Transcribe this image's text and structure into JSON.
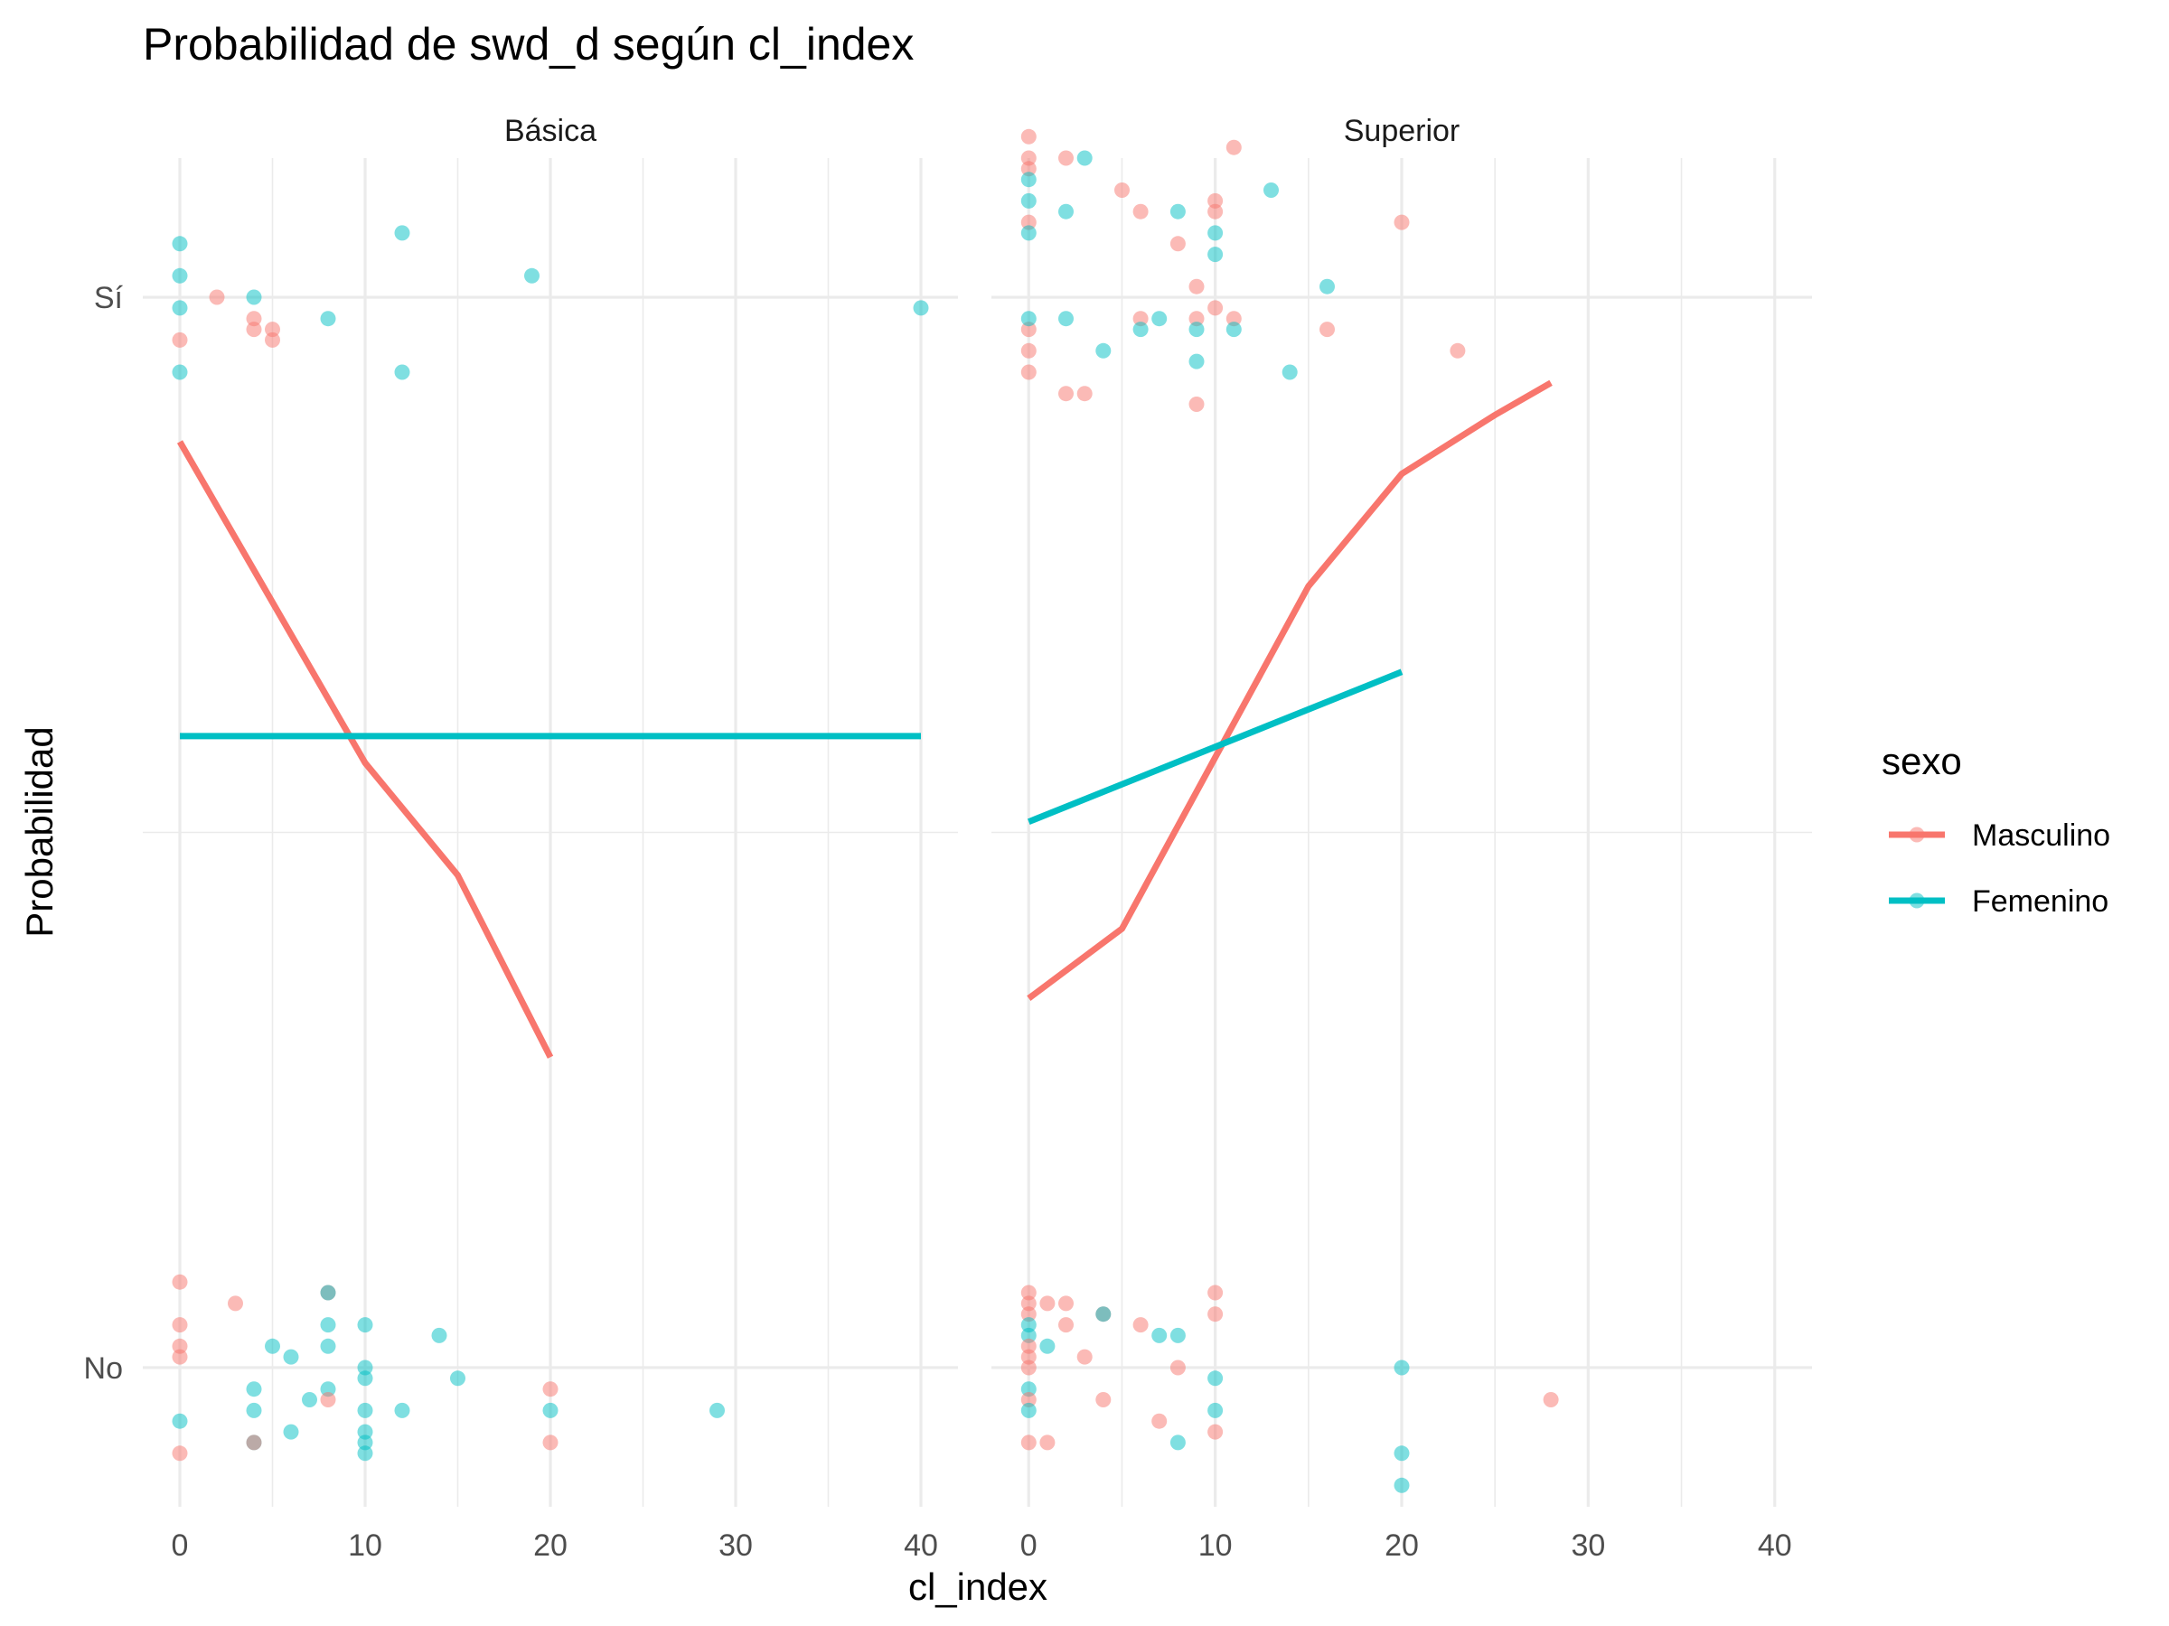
{
  "chart_data": {
    "type": "scatter",
    "title": "Probabilidad de swd_d según cl_index",
    "xlabel": "cl_index",
    "ylabel": "Probabilidad",
    "xlim": [
      -2,
      42
    ],
    "ylim": [
      -0.13,
      1.13
    ],
    "x_ticks": [
      "0",
      "10",
      "20",
      "30",
      "40"
    ],
    "y_tick_labels": [
      {
        "label": "No",
        "value": 0
      },
      {
        "label": "Sí",
        "value": 1
      }
    ],
    "grid": true,
    "legend": {
      "title": "sexo",
      "position": "right"
    },
    "colors": {
      "Masculino": "#F8766D",
      "Femenino": "#00BFC4"
    },
    "facets": [
      {
        "name": "Básica",
        "points": [
          {
            "x": 0,
            "y": 1.05,
            "sexo": "Femenino"
          },
          {
            "x": 0,
            "y": 1.02,
            "sexo": "Femenino"
          },
          {
            "x": 0,
            "y": 0.99,
            "sexo": "Femenino"
          },
          {
            "x": 0,
            "y": 0.93,
            "sexo": "Femenino"
          },
          {
            "x": 0,
            "y": 0.96,
            "sexo": "Masculino"
          },
          {
            "x": 2,
            "y": 1.0,
            "sexo": "Masculino"
          },
          {
            "x": 4,
            "y": 1.0,
            "sexo": "Femenino"
          },
          {
            "x": 4,
            "y": 0.98,
            "sexo": "Masculino"
          },
          {
            "x": 4,
            "y": 0.97,
            "sexo": "Masculino"
          },
          {
            "x": 5,
            "y": 0.97,
            "sexo": "Masculino"
          },
          {
            "x": 5,
            "y": 0.96,
            "sexo": "Masculino"
          },
          {
            "x": 8,
            "y": 0.98,
            "sexo": "Femenino"
          },
          {
            "x": 12,
            "y": 1.06,
            "sexo": "Femenino"
          },
          {
            "x": 12,
            "y": 0.93,
            "sexo": "Femenino"
          },
          {
            "x": 19,
            "y": 1.02,
            "sexo": "Femenino"
          },
          {
            "x": 40,
            "y": 0.99,
            "sexo": "Femenino"
          },
          {
            "x": 0,
            "y": 0.08,
            "sexo": "Masculino"
          },
          {
            "x": 0,
            "y": 0.04,
            "sexo": "Masculino"
          },
          {
            "x": 0,
            "y": 0.02,
            "sexo": "Masculino"
          },
          {
            "x": 0,
            "y": 0.01,
            "sexo": "Masculino"
          },
          {
            "x": 0,
            "y": -0.05,
            "sexo": "Femenino"
          },
          {
            "x": 0,
            "y": -0.08,
            "sexo": "Masculino"
          },
          {
            "x": 3,
            "y": 0.06,
            "sexo": "Masculino"
          },
          {
            "x": 4,
            "y": -0.04,
            "sexo": "Femenino"
          },
          {
            "x": 4,
            "y": -0.02,
            "sexo": "Femenino"
          },
          {
            "x": 4,
            "y": -0.07,
            "sexo": "Femenino"
          },
          {
            "x": 4,
            "y": -0.07,
            "sexo": "Masculino"
          },
          {
            "x": 5,
            "y": 0.02,
            "sexo": "Femenino"
          },
          {
            "x": 6,
            "y": 0.01,
            "sexo": "Femenino"
          },
          {
            "x": 6,
            "y": -0.06,
            "sexo": "Femenino"
          },
          {
            "x": 7,
            "y": -0.03,
            "sexo": "Femenino"
          },
          {
            "x": 8,
            "y": 0.07,
            "sexo": "Masculino"
          },
          {
            "x": 8,
            "y": 0.07,
            "sexo": "Femenino"
          },
          {
            "x": 8,
            "y": 0.04,
            "sexo": "Femenino"
          },
          {
            "x": 8,
            "y": 0.02,
            "sexo": "Femenino"
          },
          {
            "x": 8,
            "y": -0.02,
            "sexo": "Femenino"
          },
          {
            "x": 8,
            "y": -0.03,
            "sexo": "Masculino"
          },
          {
            "x": 10,
            "y": 0.04,
            "sexo": "Femenino"
          },
          {
            "x": 10,
            "y": 0.0,
            "sexo": "Femenino"
          },
          {
            "x": 10,
            "y": -0.01,
            "sexo": "Femenino"
          },
          {
            "x": 10,
            "y": -0.04,
            "sexo": "Femenino"
          },
          {
            "x": 10,
            "y": -0.06,
            "sexo": "Femenino"
          },
          {
            "x": 10,
            "y": -0.07,
            "sexo": "Femenino"
          },
          {
            "x": 10,
            "y": -0.08,
            "sexo": "Femenino"
          },
          {
            "x": 12,
            "y": -0.04,
            "sexo": "Femenino"
          },
          {
            "x": 14,
            "y": 0.03,
            "sexo": "Femenino"
          },
          {
            "x": 15,
            "y": -0.01,
            "sexo": "Femenino"
          },
          {
            "x": 20,
            "y": -0.02,
            "sexo": "Masculino"
          },
          {
            "x": 20,
            "y": -0.04,
            "sexo": "Femenino"
          },
          {
            "x": 20,
            "y": -0.07,
            "sexo": "Masculino"
          },
          {
            "x": 29,
            "y": -0.04,
            "sexo": "Femenino"
          }
        ],
        "lines": [
          {
            "sexo": "Masculino",
            "x": [
              0,
              5,
              10,
              15,
              20
            ],
            "y": [
              0.865,
              0.715,
              0.565,
              0.46,
              0.29
            ]
          },
          {
            "sexo": "Femenino",
            "x": [
              0,
              40
            ],
            "y": [
              0.59,
              0.59
            ]
          }
        ]
      },
      {
        "name": "Superior",
        "points": [
          {
            "x": 0,
            "y": 1.15,
            "sexo": "Masculino"
          },
          {
            "x": 0,
            "y": 1.13,
            "sexo": "Masculino"
          },
          {
            "x": 0,
            "y": 1.12,
            "sexo": "Masculino"
          },
          {
            "x": 0,
            "y": 1.11,
            "sexo": "Femenino"
          },
          {
            "x": 0,
            "y": 1.09,
            "sexo": "Femenino"
          },
          {
            "x": 0,
            "y": 1.07,
            "sexo": "Masculino"
          },
          {
            "x": 0,
            "y": 1.06,
            "sexo": "Femenino"
          },
          {
            "x": 0,
            "y": 0.97,
            "sexo": "Masculino"
          },
          {
            "x": 0,
            "y": 0.95,
            "sexo": "Masculino"
          },
          {
            "x": 0,
            "y": 0.93,
            "sexo": "Masculino"
          },
          {
            "x": 0,
            "y": 0.98,
            "sexo": "Femenino"
          },
          {
            "x": 2,
            "y": 1.13,
            "sexo": "Masculino"
          },
          {
            "x": 2,
            "y": 1.08,
            "sexo": "Femenino"
          },
          {
            "x": 2,
            "y": 0.98,
            "sexo": "Femenino"
          },
          {
            "x": 2,
            "y": 0.91,
            "sexo": "Masculino"
          },
          {
            "x": 3,
            "y": 1.13,
            "sexo": "Femenino"
          },
          {
            "x": 3,
            "y": 0.91,
            "sexo": "Masculino"
          },
          {
            "x": 4,
            "y": 0.95,
            "sexo": "Femenino"
          },
          {
            "x": 5,
            "y": 1.1,
            "sexo": "Masculino"
          },
          {
            "x": 6,
            "y": 1.08,
            "sexo": "Masculino"
          },
          {
            "x": 6,
            "y": 0.98,
            "sexo": "Masculino"
          },
          {
            "x": 6,
            "y": 0.97,
            "sexo": "Femenino"
          },
          {
            "x": 7,
            "y": 0.98,
            "sexo": "Femenino"
          },
          {
            "x": 8,
            "y": 1.08,
            "sexo": "Femenino"
          },
          {
            "x": 8,
            "y": 1.05,
            "sexo": "Masculino"
          },
          {
            "x": 9,
            "y": 1.01,
            "sexo": "Masculino"
          },
          {
            "x": 9,
            "y": 0.98,
            "sexo": "Masculino"
          },
          {
            "x": 9,
            "y": 0.97,
            "sexo": "Femenino"
          },
          {
            "x": 9,
            "y": 0.94,
            "sexo": "Femenino"
          },
          {
            "x": 9,
            "y": 0.9,
            "sexo": "Masculino"
          },
          {
            "x": 10,
            "y": 1.09,
            "sexo": "Masculino"
          },
          {
            "x": 10,
            "y": 1.08,
            "sexo": "Masculino"
          },
          {
            "x": 10,
            "y": 1.06,
            "sexo": "Femenino"
          },
          {
            "x": 10,
            "y": 1.04,
            "sexo": "Femenino"
          },
          {
            "x": 10,
            "y": 0.99,
            "sexo": "Masculino"
          },
          {
            "x": 11,
            "y": 1.14,
            "sexo": "Masculino"
          },
          {
            "x": 11,
            "y": 0.98,
            "sexo": "Masculino"
          },
          {
            "x": 11,
            "y": 0.97,
            "sexo": "Femenino"
          },
          {
            "x": 13,
            "y": 1.1,
            "sexo": "Femenino"
          },
          {
            "x": 14,
            "y": 0.93,
            "sexo": "Femenino"
          },
          {
            "x": 16,
            "y": 1.01,
            "sexo": "Femenino"
          },
          {
            "x": 16,
            "y": 0.97,
            "sexo": "Masculino"
          },
          {
            "x": 20,
            "y": 1.07,
            "sexo": "Masculino"
          },
          {
            "x": 23,
            "y": 0.95,
            "sexo": "Masculino"
          },
          {
            "x": 0,
            "y": 0.07,
            "sexo": "Masculino"
          },
          {
            "x": 0,
            "y": 0.06,
            "sexo": "Masculino"
          },
          {
            "x": 0,
            "y": 0.05,
            "sexo": "Masculino"
          },
          {
            "x": 0,
            "y": 0.04,
            "sexo": "Femenino"
          },
          {
            "x": 0,
            "y": 0.03,
            "sexo": "Femenino"
          },
          {
            "x": 0,
            "y": 0.02,
            "sexo": "Masculino"
          },
          {
            "x": 0,
            "y": 0.01,
            "sexo": "Masculino"
          },
          {
            "x": 0,
            "y": 0.0,
            "sexo": "Masculino"
          },
          {
            "x": 0,
            "y": -0.02,
            "sexo": "Femenino"
          },
          {
            "x": 0,
            "y": -0.03,
            "sexo": "Masculino"
          },
          {
            "x": 0,
            "y": -0.04,
            "sexo": "Femenino"
          },
          {
            "x": 0,
            "y": -0.07,
            "sexo": "Masculino"
          },
          {
            "x": 1,
            "y": 0.06,
            "sexo": "Masculino"
          },
          {
            "x": 1,
            "y": 0.02,
            "sexo": "Femenino"
          },
          {
            "x": 1,
            "y": -0.07,
            "sexo": "Masculino"
          },
          {
            "x": 2,
            "y": 0.06,
            "sexo": "Masculino"
          },
          {
            "x": 2,
            "y": 0.04,
            "sexo": "Masculino"
          },
          {
            "x": 3,
            "y": 0.01,
            "sexo": "Masculino"
          },
          {
            "x": 4,
            "y": 0.05,
            "sexo": "Masculino"
          },
          {
            "x": 4,
            "y": 0.05,
            "sexo": "Femenino"
          },
          {
            "x": 4,
            "y": -0.03,
            "sexo": "Masculino"
          },
          {
            "x": 6,
            "y": 0.04,
            "sexo": "Masculino"
          },
          {
            "x": 7,
            "y": 0.03,
            "sexo": "Femenino"
          },
          {
            "x": 7,
            "y": -0.05,
            "sexo": "Masculino"
          },
          {
            "x": 8,
            "y": 0.03,
            "sexo": "Femenino"
          },
          {
            "x": 8,
            "y": 0.0,
            "sexo": "Masculino"
          },
          {
            "x": 8,
            "y": -0.07,
            "sexo": "Femenino"
          },
          {
            "x": 10,
            "y": 0.07,
            "sexo": "Masculino"
          },
          {
            "x": 10,
            "y": 0.05,
            "sexo": "Masculino"
          },
          {
            "x": 10,
            "y": -0.01,
            "sexo": "Femenino"
          },
          {
            "x": 10,
            "y": -0.04,
            "sexo": "Femenino"
          },
          {
            "x": 10,
            "y": -0.06,
            "sexo": "Masculino"
          },
          {
            "x": 20,
            "y": 0.0,
            "sexo": "Femenino"
          },
          {
            "x": 20,
            "y": -0.11,
            "sexo": "Femenino"
          },
          {
            "x": 20,
            "y": -0.08,
            "sexo": "Femenino"
          },
          {
            "x": 28,
            "y": -0.03,
            "sexo": "Masculino"
          }
        ],
        "lines": [
          {
            "sexo": "Masculino",
            "x": [
              0,
              5,
              10,
              15,
              20,
              25,
              28
            ],
            "y": [
              0.345,
              0.41,
              0.57,
              0.73,
              0.835,
              0.89,
              0.92
            ]
          },
          {
            "sexo": "Femenino",
            "x": [
              0,
              20
            ],
            "y": [
              0.51,
              0.65
            ]
          }
        ]
      }
    ]
  }
}
